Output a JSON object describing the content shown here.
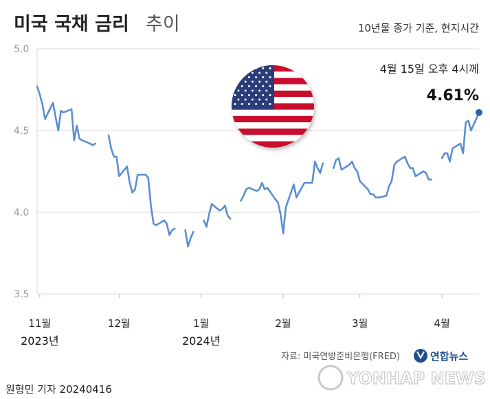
{
  "header": {
    "title_bold": "미국 국채 금리",
    "title_light": "추이",
    "subtitle": "10년물 종가 기준, 현지시간"
  },
  "annotation": {
    "date_label": "4월 15일 오후 4시께",
    "value_label": "4.61%"
  },
  "source": "자료: 미국연방준비은행(FRED)",
  "footer": {
    "credit": "원형민 기자  20240416",
    "brand_kr": "연합뉴스",
    "brand_en": "YONHAP NEWS"
  },
  "colors": {
    "line": "#5b8ed0",
    "end_dot": "#2f64ad",
    "grid": "#d8d8d8",
    "flag_red": "#c8102e",
    "flag_blue": "#2b3d7a"
  },
  "flag_icon": "us-flag-icon",
  "chart_data": {
    "type": "line",
    "title": "미국 국채 금리 추이",
    "subtitle": "10년물 종가 기준, 현지시간",
    "ylim": [
      3.5,
      5.0
    ],
    "yticks": [
      "5.0",
      "4.5",
      "4.0",
      "3.5"
    ],
    "x_range": [
      "2023-10-31",
      "2024-04-15"
    ],
    "xticks": [
      {
        "label": "11월",
        "year": "2023년",
        "date": "2023-11-01"
      },
      {
        "label": "12월",
        "year": "",
        "date": "2023-12-01"
      },
      {
        "label": "1월",
        "year": "2024년",
        "date": "2024-01-01"
      },
      {
        "label": "2월",
        "year": "",
        "date": "2024-02-01"
      },
      {
        "label": "3월",
        "year": "",
        "date": "2024-03-01"
      },
      {
        "label": "4월",
        "year": "",
        "date": "2024-04-01"
      }
    ],
    "grid": true,
    "segments": [
      [
        [
          "2023-10-31",
          4.77
        ],
        [
          "2023-11-01",
          4.72
        ],
        [
          "2023-11-02",
          4.66
        ],
        [
          "2023-11-03",
          4.57
        ],
        [
          "2023-11-06",
          4.67
        ],
        [
          "2023-11-07",
          4.58
        ],
        [
          "2023-11-08",
          4.5
        ],
        [
          "2023-11-09",
          4.62
        ],
        [
          "2023-11-10",
          4.61
        ],
        [
          "2023-11-13",
          4.63
        ],
        [
          "2023-11-14",
          4.44
        ],
        [
          "2023-11-15",
          4.53
        ],
        [
          "2023-11-16",
          4.45
        ],
        [
          "2023-11-17",
          4.44
        ],
        [
          "2023-11-20",
          4.42
        ],
        [
          "2023-11-21",
          4.41
        ],
        [
          "2023-11-22",
          4.42
        ]
      ],
      [
        [
          "2023-11-27",
          4.47
        ],
        [
          "2023-11-28",
          4.39
        ],
        [
          "2023-11-29",
          4.34
        ],
        [
          "2023-11-30",
          4.34
        ],
        [
          "2023-12-01",
          4.22
        ],
        [
          "2023-12-04",
          4.28
        ],
        [
          "2023-12-05",
          4.18
        ],
        [
          "2023-12-06",
          4.12
        ],
        [
          "2023-12-07",
          4.14
        ],
        [
          "2023-12-08",
          4.23
        ],
        [
          "2023-12-11",
          4.23
        ],
        [
          "2023-12-12",
          4.21
        ],
        [
          "2023-12-13",
          4.04
        ],
        [
          "2023-12-14",
          3.93
        ],
        [
          "2023-12-15",
          3.92
        ],
        [
          "2023-12-18",
          3.95
        ],
        [
          "2023-12-19",
          3.93
        ],
        [
          "2023-12-20",
          3.86
        ],
        [
          "2023-12-21",
          3.89
        ],
        [
          "2023-12-22",
          3.9
        ]
      ],
      [
        [
          "2023-12-26",
          3.89
        ],
        [
          "2023-12-27",
          3.79
        ],
        [
          "2023-12-28",
          3.84
        ],
        [
          "2023-12-29",
          3.88
        ]
      ],
      [
        [
          "2024-01-02",
          3.95
        ],
        [
          "2024-01-03",
          3.91
        ],
        [
          "2024-01-04",
          3.99
        ],
        [
          "2024-01-05",
          4.05
        ],
        [
          "2024-01-08",
          4.01
        ],
        [
          "2024-01-09",
          4.02
        ],
        [
          "2024-01-10",
          4.04
        ],
        [
          "2024-01-11",
          3.98
        ],
        [
          "2024-01-12",
          3.96
        ]
      ],
      [
        [
          "2024-01-16",
          4.07
        ],
        [
          "2024-01-17",
          4.1
        ],
        [
          "2024-01-18",
          4.14
        ],
        [
          "2024-01-19",
          4.15
        ],
        [
          "2024-01-22",
          4.13
        ],
        [
          "2024-01-23",
          4.14
        ],
        [
          "2024-01-24",
          4.18
        ],
        [
          "2024-01-25",
          4.14
        ],
        [
          "2024-01-26",
          4.15
        ],
        [
          "2024-01-29",
          4.08
        ],
        [
          "2024-01-30",
          4.06
        ],
        [
          "2024-01-31",
          3.99
        ],
        [
          "2024-02-01",
          3.87
        ],
        [
          "2024-02-02",
          4.03
        ],
        [
          "2024-02-05",
          4.17
        ],
        [
          "2024-02-06",
          4.09
        ],
        [
          "2024-02-07",
          4.12
        ],
        [
          "2024-02-08",
          4.15
        ],
        [
          "2024-02-09",
          4.18
        ],
        [
          "2024-02-12",
          4.18
        ],
        [
          "2024-02-13",
          4.31
        ],
        [
          "2024-02-14",
          4.27
        ],
        [
          "2024-02-15",
          4.24
        ],
        [
          "2024-02-16",
          4.3
        ]
      ],
      [
        [
          "2024-02-20",
          4.27
        ],
        [
          "2024-02-21",
          4.32
        ],
        [
          "2024-02-22",
          4.33
        ],
        [
          "2024-02-23",
          4.26
        ],
        [
          "2024-02-26",
          4.29
        ],
        [
          "2024-02-27",
          4.31
        ],
        [
          "2024-02-28",
          4.27
        ],
        [
          "2024-02-29",
          4.25
        ],
        [
          "2024-03-01",
          4.19
        ],
        [
          "2024-03-04",
          4.14
        ],
        [
          "2024-03-05",
          4.11
        ],
        [
          "2024-03-06",
          4.11
        ],
        [
          "2024-03-07",
          4.09
        ],
        [
          "2024-03-08",
          4.09
        ],
        [
          "2024-03-11",
          4.1
        ],
        [
          "2024-03-12",
          4.16
        ],
        [
          "2024-03-13",
          4.19
        ],
        [
          "2024-03-14",
          4.29
        ],
        [
          "2024-03-15",
          4.31
        ],
        [
          "2024-03-18",
          4.34
        ],
        [
          "2024-03-19",
          4.3
        ],
        [
          "2024-03-20",
          4.27
        ],
        [
          "2024-03-21",
          4.27
        ],
        [
          "2024-03-22",
          4.22
        ],
        [
          "2024-03-25",
          4.25
        ],
        [
          "2024-03-26",
          4.24
        ],
        [
          "2024-03-27",
          4.2
        ],
        [
          "2024-03-28",
          4.2
        ]
      ],
      [
        [
          "2024-04-01",
          4.33
        ],
        [
          "2024-04-02",
          4.36
        ],
        [
          "2024-04-03",
          4.36
        ],
        [
          "2024-04-04",
          4.31
        ],
        [
          "2024-04-05",
          4.39
        ],
        [
          "2024-04-08",
          4.42
        ],
        [
          "2024-04-09",
          4.36
        ],
        [
          "2024-04-10",
          4.55
        ],
        [
          "2024-04-11",
          4.56
        ],
        [
          "2024-04-12",
          4.5
        ],
        [
          "2024-04-15",
          4.61
        ]
      ]
    ],
    "highlight": {
      "x": "2024-04-15",
      "y": 4.61
    }
  }
}
